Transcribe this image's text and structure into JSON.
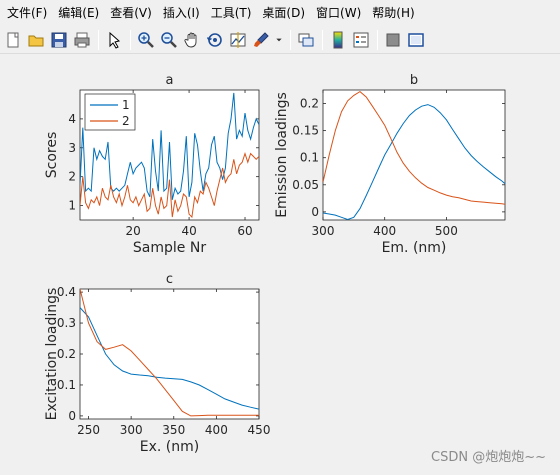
{
  "menu": [
    {
      "name": "menu-file",
      "label": "文件(F)"
    },
    {
      "name": "menu-edit",
      "label": "编辑(E)"
    },
    {
      "name": "menu-view",
      "label": "查看(V)"
    },
    {
      "name": "menu-insert",
      "label": "插入(I)"
    },
    {
      "name": "menu-tools",
      "label": "工具(T)"
    },
    {
      "name": "menu-desktop",
      "label": "桌面(D)"
    },
    {
      "name": "menu-window",
      "label": "窗口(W)"
    },
    {
      "name": "menu-help",
      "label": "帮助(H)"
    }
  ],
  "toolbar_icons": [
    "new-figure-icon",
    "open-file-icon",
    "save-icon",
    "print-icon",
    "|",
    "edit-pointer-icon",
    "|",
    "zoom-in-icon",
    "zoom-out-icon",
    "pan-hand-icon",
    "rotate-3d-icon",
    "data-cursor-icon",
    "brush-icon",
    "brush-dropdown-icon",
    "|",
    "link-plot-icon",
    "|",
    "colorbar-icon",
    "legend-icon",
    "|",
    "hide-plot-tools-icon",
    "show-plot-tools-icon"
  ],
  "colors": {
    "series1": "#0072bd",
    "series2": "#d95319",
    "axes": "#262626",
    "background": "#f0f0f0"
  },
  "chart_data": [
    {
      "type": "line",
      "title": "a",
      "xlabel": "Sample Nr",
      "ylabel": "Scores",
      "xlim": [
        1,
        65
      ],
      "ylim": [
        0.5,
        5
      ],
      "xticks": [
        20,
        40,
        60
      ],
      "yticks": [
        1,
        2,
        3,
        4
      ],
      "legend": {
        "placement": "top-left",
        "entries": [
          "1",
          "2"
        ]
      },
      "x": [
        1,
        2,
        3,
        4,
        5,
        6,
        7,
        8,
        9,
        10,
        11,
        12,
        13,
        14,
        15,
        16,
        17,
        18,
        19,
        20,
        21,
        22,
        23,
        24,
        25,
        26,
        27,
        28,
        29,
        30,
        31,
        32,
        33,
        34,
        35,
        36,
        37,
        38,
        39,
        40,
        41,
        42,
        43,
        44,
        45,
        46,
        47,
        48,
        49,
        50,
        51,
        52,
        53,
        54,
        55,
        56,
        57,
        58,
        59,
        60,
        61,
        62,
        63,
        64,
        65
      ],
      "series": [
        {
          "name": "1",
          "values": [
            1.7,
            3.7,
            1.5,
            1.6,
            1.5,
            3.0,
            2.6,
            2.9,
            2.7,
            2.6,
            3.2,
            1.6,
            1.5,
            1.6,
            1.5,
            1.6,
            1.7,
            2.1,
            2.5,
            2.1,
            2.3,
            2.4,
            2.5,
            2.3,
            1.5,
            1.3,
            3.3,
            2.2,
            1.5,
            3.6,
            1.5,
            1.6,
            3.2,
            1.2,
            1.6,
            1.4,
            1.5,
            2.2,
            3.4,
            1.3,
            1.8,
            3.5,
            3.1,
            2.2,
            1.5,
            2.1,
            2.3,
            3.1,
            3.4,
            2.5,
            2.3,
            1.9,
            2.3,
            3.5,
            4.0,
            4.9,
            3.3,
            3.6,
            3.4,
            4.2,
            3.6,
            3.3,
            3.7,
            4.0,
            3.8
          ]
        },
        {
          "name": "2",
          "values": [
            1.0,
            2.0,
            1.1,
            0.9,
            1.2,
            1.1,
            1.3,
            1.0,
            1.6,
            1.3,
            1.2,
            1.7,
            1.3,
            1.1,
            1.4,
            1.0,
            1.3,
            1.7,
            1.2,
            1.1,
            1.3,
            1.0,
            1.2,
            1.4,
            0.8,
            0.9,
            1.6,
            1.0,
            0.7,
            1.3,
            0.9,
            1.0,
            1.9,
            0.6,
            1.2,
            0.8,
            1.0,
            1.4,
            1.3,
            0.7,
            0.6,
            1.3,
            1.1,
            1.5,
            1.4,
            1.8,
            1.6,
            1.3,
            1.0,
            1.5,
            1.9,
            2.3,
            1.8,
            2.0,
            2.1,
            2.6,
            2.1,
            2.4,
            2.5,
            2.8,
            2.5,
            2.8,
            2.7,
            2.6,
            2.7
          ]
        }
      ]
    },
    {
      "type": "line",
      "title": "b",
      "xlabel": "Em. (nm)",
      "ylabel": "Emission loadings",
      "xlim": [
        300,
        595
      ],
      "ylim": [
        -0.015,
        0.225
      ],
      "xticks": [
        300,
        400,
        500
      ],
      "yticks": [
        0,
        0.05,
        0.1,
        0.15,
        0.2
      ],
      "ytick_labels": [
        "0",
        "0.05",
        "0.1",
        "0.15",
        "0.2"
      ],
      "x": [
        300,
        310,
        320,
        330,
        340,
        350,
        360,
        370,
        380,
        390,
        400,
        410,
        420,
        430,
        440,
        450,
        460,
        470,
        480,
        490,
        500,
        510,
        520,
        530,
        540,
        550,
        560,
        570,
        580,
        590,
        595
      ],
      "series": [
        {
          "name": "1",
          "values": [
            -0.002,
            -0.004,
            -0.006,
            -0.01,
            -0.014,
            -0.01,
            0.006,
            0.03,
            0.055,
            0.08,
            0.105,
            0.125,
            0.145,
            0.163,
            0.178,
            0.188,
            0.195,
            0.198,
            0.193,
            0.183,
            0.17,
            0.152,
            0.135,
            0.118,
            0.104,
            0.093,
            0.083,
            0.074,
            0.065,
            0.057,
            0.052
          ]
        },
        {
          "name": "2",
          "values": [
            0.055,
            0.105,
            0.15,
            0.185,
            0.205,
            0.215,
            0.222,
            0.212,
            0.195,
            0.178,
            0.16,
            0.135,
            0.11,
            0.09,
            0.075,
            0.063,
            0.053,
            0.045,
            0.04,
            0.035,
            0.031,
            0.028,
            0.026,
            0.023,
            0.02,
            0.019,
            0.018,
            0.017,
            0.016,
            0.015,
            0.014
          ]
        }
      ]
    },
    {
      "type": "line",
      "title": "c",
      "xlabel": "Ex. (nm)",
      "ylabel": "Excitation loadings",
      "xlim": [
        240,
        450
      ],
      "ylim": [
        -0.01,
        0.41
      ],
      "xticks": [
        250,
        300,
        350,
        400,
        450
      ],
      "yticks": [
        0,
        0.1,
        0.2,
        0.3,
        0.4
      ],
      "ytick_labels": [
        "0",
        "0.1",
        "0.2",
        "0.3",
        "0.4"
      ],
      "x": [
        240,
        250,
        260,
        270,
        280,
        290,
        300,
        310,
        320,
        330,
        340,
        350,
        360,
        370,
        380,
        390,
        400,
        410,
        420,
        430,
        440,
        450
      ],
      "series": [
        {
          "name": "1",
          "values": [
            0.35,
            0.32,
            0.26,
            0.2,
            0.165,
            0.145,
            0.135,
            0.132,
            0.13,
            0.125,
            0.122,
            0.12,
            0.118,
            0.11,
            0.1,
            0.085,
            0.07,
            0.055,
            0.045,
            0.035,
            0.028,
            0.022
          ]
        },
        {
          "name": "2",
          "values": [
            0.41,
            0.3,
            0.24,
            0.215,
            0.222,
            0.23,
            0.21,
            0.18,
            0.15,
            0.12,
            0.085,
            0.05,
            0.015,
            0.0,
            0.001,
            0.002,
            0.002,
            0.002,
            0.002,
            0.002,
            0.002,
            0.002
          ]
        }
      ]
    }
  ],
  "watermark": "CSDN @炮炮炮~~"
}
